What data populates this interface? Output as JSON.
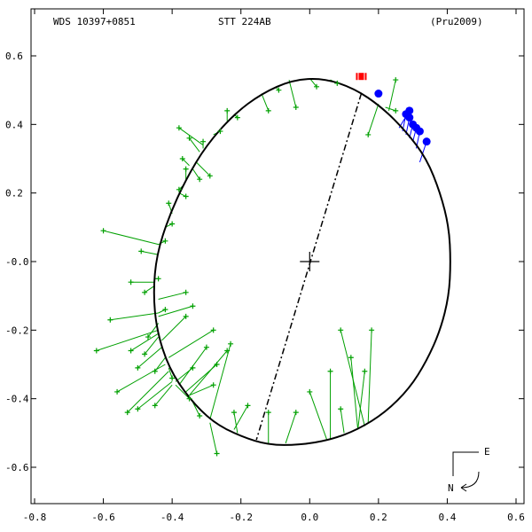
{
  "header": {
    "left": "WDS 10397+0851",
    "center": "STT 224AB",
    "right": "(Pru2009)"
  },
  "orientation": {
    "east_label": "E",
    "north_label": "N"
  },
  "colors": {
    "orbit": "#000000",
    "observations": "#00a000",
    "residual_lines": "#00a000",
    "speckle_points": "#0000ff",
    "speckle_lines": "#0000ff",
    "recent_point": "#ff0000"
  },
  "chart_data": {
    "type": "scatter",
    "title": "",
    "xlabel": "",
    "ylabel": "",
    "xlim": [
      -0.8,
      0.6
    ],
    "ylim": [
      -0.65,
      0.6
    ],
    "x_ticks": [
      "-0.8",
      "-0.6",
      "-0.4",
      "-0.2",
      "0.0",
      "0.2",
      "0.4",
      "0.6"
    ],
    "y_ticks": [
      "-0.6",
      "-0.4",
      "-0.2",
      "-0.0",
      "0.2",
      "0.4",
      "0.6"
    ],
    "x_tick_values": [
      -0.8,
      -0.6,
      -0.4,
      -0.2,
      0.0,
      0.2,
      0.4,
      0.6
    ],
    "y_tick_values": [
      -0.6,
      -0.4,
      -0.2,
      0.0,
      0.2,
      0.4,
      0.6
    ],
    "orbit_path": [
      [
        0.04,
        0.535
      ],
      [
        0.13,
        0.505
      ],
      [
        0.21,
        0.45
      ],
      [
        0.28,
        0.38
      ],
      [
        0.34,
        0.3
      ],
      [
        0.38,
        0.2
      ],
      [
        0.405,
        0.1
      ],
      [
        0.41,
        0.0
      ],
      [
        0.405,
        -0.1
      ],
      [
        0.38,
        -0.2
      ],
      [
        0.34,
        -0.29
      ],
      [
        0.29,
        -0.37
      ],
      [
        0.22,
        -0.44
      ],
      [
        0.14,
        -0.49
      ],
      [
        0.06,
        -0.52
      ],
      [
        -0.03,
        -0.535
      ],
      [
        -0.12,
        -0.535
      ],
      [
        -0.2,
        -0.51
      ],
      [
        -0.28,
        -0.47
      ],
      [
        -0.35,
        -0.4
      ],
      [
        -0.41,
        -0.31
      ],
      [
        -0.445,
        -0.2
      ],
      [
        -0.455,
        -0.09
      ],
      [
        -0.445,
        0.02
      ],
      [
        -0.41,
        0.13
      ],
      [
        -0.36,
        0.24
      ],
      [
        -0.3,
        0.34
      ],
      [
        -0.22,
        0.43
      ],
      [
        -0.14,
        0.49
      ],
      [
        -0.05,
        0.53
      ],
      [
        0.04,
        0.535
      ]
    ],
    "line_of_nodes": [
      [
        0.15,
        0.49
      ],
      [
        -0.155,
        -0.52
      ]
    ],
    "primary": [
      0.0,
      0.0
    ],
    "speckle_observations": [
      {
        "x": 0.2,
        "y": 0.49,
        "fx": 0.195,
        "fy": 0.488
      },
      {
        "x": 0.29,
        "y": 0.44,
        "fx": 0.26,
        "fy": 0.39
      },
      {
        "x": 0.28,
        "y": 0.43,
        "fx": 0.27,
        "fy": 0.38
      },
      {
        "x": 0.29,
        "y": 0.42,
        "fx": 0.28,
        "fy": 0.37
      },
      {
        "x": 0.3,
        "y": 0.4,
        "fx": 0.29,
        "fy": 0.36
      },
      {
        "x": 0.31,
        "y": 0.39,
        "fx": 0.3,
        "fy": 0.35
      },
      {
        "x": 0.32,
        "y": 0.38,
        "fx": 0.31,
        "fy": 0.33
      },
      {
        "x": 0.34,
        "y": 0.35,
        "fx": 0.32,
        "fy": 0.29
      }
    ],
    "recent_observation": {
      "x": 0.15,
      "y": 0.54
    },
    "visual_observations": [
      {
        "x": -0.6,
        "y": 0.09,
        "fx": -0.44,
        "fy": 0.05
      },
      {
        "x": -0.62,
        "y": -0.26,
        "fx": -0.44,
        "fy": -0.2
      },
      {
        "x": -0.56,
        "y": -0.38,
        "fx": -0.42,
        "fy": -0.3
      },
      {
        "x": -0.53,
        "y": -0.44,
        "fx": -0.41,
        "fy": -0.32
      },
      {
        "x": -0.5,
        "y": -0.43,
        "fx": -0.4,
        "fy": -0.35
      },
      {
        "x": -0.58,
        "y": -0.17,
        "fx": -0.44,
        "fy": -0.15
      },
      {
        "x": -0.5,
        "y": -0.31,
        "fx": -0.43,
        "fy": -0.25
      },
      {
        "x": -0.52,
        "y": -0.26,
        "fx": -0.44,
        "fy": -0.21
      },
      {
        "x": -0.47,
        "y": -0.22,
        "fx": -0.44,
        "fy": -0.18
      },
      {
        "x": -0.48,
        "y": -0.09,
        "fx": -0.45,
        "fy": -0.07
      },
      {
        "x": -0.49,
        "y": 0.03,
        "fx": -0.44,
        "fy": 0.02
      },
      {
        "x": -0.44,
        "y": -0.05,
        "fx": -0.45,
        "fy": -0.05
      },
      {
        "x": -0.42,
        "y": 0.06,
        "fx": -0.44,
        "fy": 0.05
      },
      {
        "x": -0.41,
        "y": 0.17,
        "fx": -0.4,
        "fy": 0.14
      },
      {
        "x": -0.35,
        "y": 0.36,
        "fx": -0.32,
        "fy": 0.32
      },
      {
        "x": -0.37,
        "y": 0.3,
        "fx": -0.35,
        "fy": 0.28
      },
      {
        "x": -0.31,
        "y": 0.35,
        "fx": -0.31,
        "fy": 0.33
      },
      {
        "x": -0.29,
        "y": 0.25,
        "fx": -0.33,
        "fy": 0.29
      },
      {
        "x": -0.38,
        "y": 0.21,
        "fx": -0.37,
        "fy": 0.22
      },
      {
        "x": -0.26,
        "y": 0.38,
        "fx": -0.28,
        "fy": 0.37
      },
      {
        "x": -0.24,
        "y": 0.44,
        "fx": -0.24,
        "fy": 0.41
      },
      {
        "x": -0.21,
        "y": 0.42,
        "fx": -0.22,
        "fy": 0.43
      },
      {
        "x": -0.12,
        "y": 0.44,
        "fx": -0.14,
        "fy": 0.49
      },
      {
        "x": -0.09,
        "y": 0.5,
        "fx": -0.1,
        "fy": 0.51
      },
      {
        "x": -0.04,
        "y": 0.45,
        "fx": -0.06,
        "fy": 0.53
      },
      {
        "x": 0.02,
        "y": 0.51,
        "fx": 0.0,
        "fy": 0.535
      },
      {
        "x": 0.08,
        "y": 0.52,
        "fx": 0.06,
        "fy": 0.53
      },
      {
        "x": 0.25,
        "y": 0.44,
        "fx": 0.22,
        "fy": 0.45
      },
      {
        "x": 0.17,
        "y": 0.37,
        "fx": 0.2,
        "fy": 0.46
      },
      {
        "x": 0.25,
        "y": 0.53,
        "fx": 0.23,
        "fy": 0.44
      },
      {
        "x": -0.48,
        "y": -0.27,
        "fx": -0.44,
        "fy": -0.22
      },
      {
        "x": -0.45,
        "y": -0.32,
        "fx": -0.42,
        "fy": -0.28
      },
      {
        "x": -0.4,
        "y": -0.34,
        "fx": -0.41,
        "fy": -0.31
      },
      {
        "x": -0.34,
        "y": -0.31,
        "fx": -0.39,
        "fy": -0.35
      },
      {
        "x": -0.3,
        "y": -0.25,
        "fx": -0.38,
        "fy": -0.36
      },
      {
        "x": -0.27,
        "y": -0.3,
        "fx": -0.36,
        "fy": -0.38
      },
      {
        "x": -0.24,
        "y": -0.26,
        "fx": -0.35,
        "fy": -0.39
      },
      {
        "x": -0.28,
        "y": -0.2,
        "fx": -0.41,
        "fy": -0.28
      },
      {
        "x": -0.36,
        "y": -0.16,
        "fx": -0.43,
        "fy": -0.23
      },
      {
        "x": -0.34,
        "y": -0.13,
        "fx": -0.44,
        "fy": -0.16
      },
      {
        "x": -0.27,
        "y": -0.56,
        "fx": -0.29,
        "fy": -0.47
      },
      {
        "x": -0.32,
        "y": -0.45,
        "fx": -0.34,
        "fy": -0.41
      },
      {
        "x": -0.18,
        "y": -0.42,
        "fx": -0.22,
        "fy": -0.49
      },
      {
        "x": -0.23,
        "y": -0.24,
        "fx": -0.29,
        "fy": -0.46
      },
      {
        "x": -0.22,
        "y": -0.44,
        "fx": -0.21,
        "fy": -0.5
      },
      {
        "x": -0.12,
        "y": -0.44,
        "fx": -0.12,
        "fy": -0.53
      },
      {
        "x": -0.04,
        "y": -0.44,
        "fx": -0.07,
        "fy": -0.53
      },
      {
        "x": 0.06,
        "y": -0.32,
        "fx": 0.06,
        "fy": -0.52
      },
      {
        "x": 0.16,
        "y": -0.32,
        "fx": 0.14,
        "fy": -0.49
      },
      {
        "x": 0.09,
        "y": -0.43,
        "fx": 0.1,
        "fy": -0.5
      },
      {
        "x": 0.18,
        "y": -0.2,
        "fx": 0.17,
        "fy": -0.47
      },
      {
        "x": 0.09,
        "y": -0.2,
        "fx": 0.16,
        "fy": -0.48
      },
      {
        "x": 0.12,
        "y": -0.28,
        "fx": 0.14,
        "fy": -0.49
      },
      {
        "x": 0.0,
        "y": -0.38,
        "fx": 0.05,
        "fy": -0.52
      },
      {
        "x": -0.38,
        "y": 0.39,
        "fx": -0.31,
        "fy": 0.34
      },
      {
        "x": -0.36,
        "y": 0.19,
        "fx": -0.38,
        "fy": 0.2
      },
      {
        "x": -0.36,
        "y": 0.27,
        "fx": -0.36,
        "fy": 0.24
      },
      {
        "x": -0.32,
        "y": 0.24,
        "fx": -0.34,
        "fy": 0.27
      },
      {
        "x": -0.4,
        "y": 0.11,
        "fx": -0.42,
        "fy": 0.1
      },
      {
        "x": -0.42,
        "y": -0.14,
        "fx": -0.44,
        "fy": -0.15
      },
      {
        "x": -0.36,
        "y": -0.09,
        "fx": -0.44,
        "fy": -0.11
      },
      {
        "x": -0.52,
        "y": -0.06,
        "fx": -0.45,
        "fy": -0.06
      },
      {
        "x": -0.45,
        "y": -0.42,
        "fx": -0.4,
        "fy": -0.36
      },
      {
        "x": -0.35,
        "y": -0.4,
        "fx": -0.39,
        "fy": -0.36
      },
      {
        "x": -0.28,
        "y": -0.36,
        "fx": -0.35,
        "fy": -0.39
      }
    ]
  }
}
